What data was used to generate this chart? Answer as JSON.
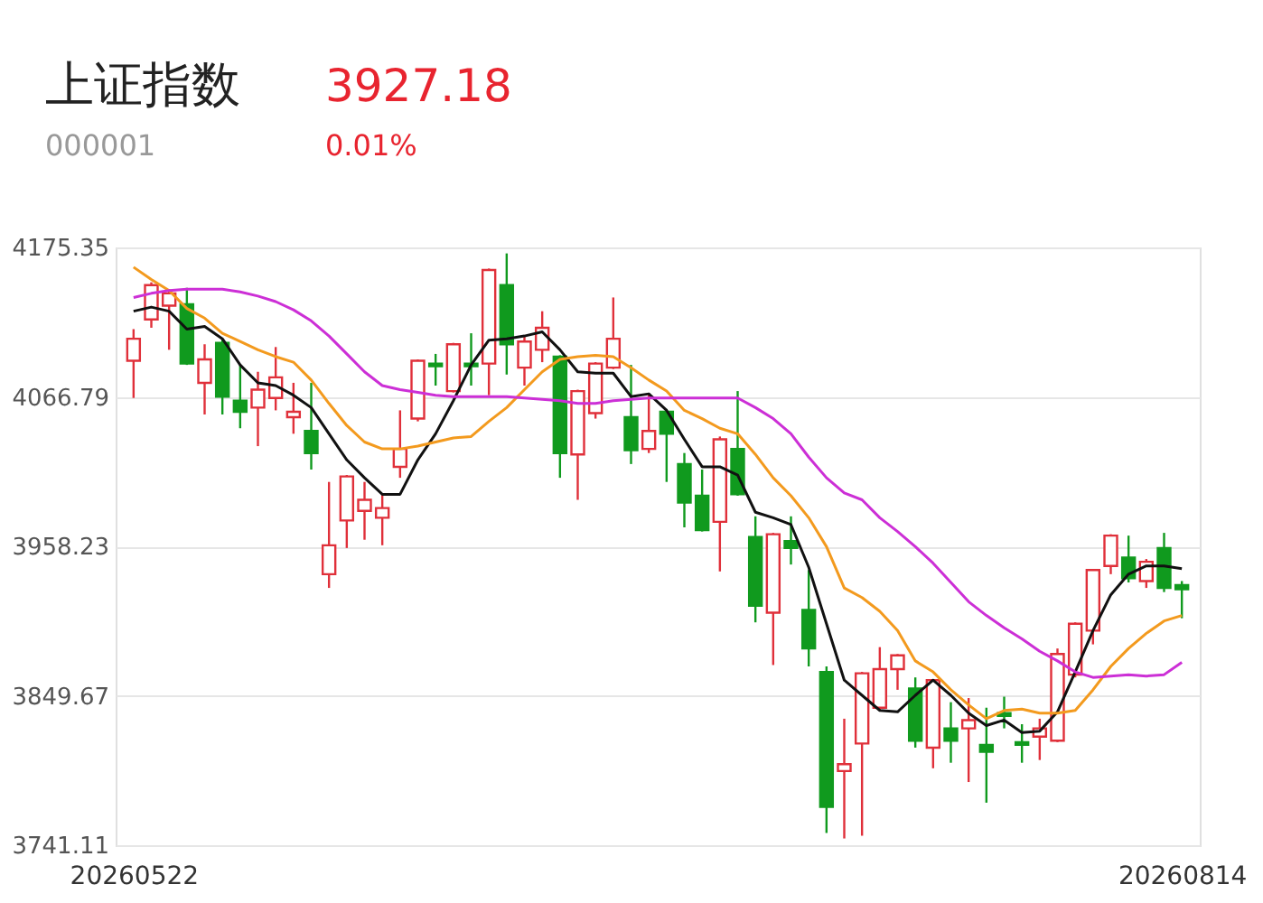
{
  "chart_data": {
    "type": "candlestick",
    "title": "上证指数",
    "subtitle": "000001",
    "annotations": [
      "3927.18",
      "0.01%"
    ],
    "categories": [
      "20260522",
      null,
      null,
      null,
      null,
      null,
      null,
      null,
      null,
      null,
      null,
      null,
      null,
      null,
      null,
      null,
      null,
      null,
      null,
      null,
      null,
      null,
      null,
      null,
      null,
      null,
      null,
      null,
      null,
      null,
      null,
      null,
      null,
      null,
      null,
      null,
      null,
      null,
      null,
      null,
      null,
      null,
      null,
      null,
      null,
      null,
      null,
      null,
      null,
      null,
      null,
      null,
      null,
      null,
      null,
      null,
      null,
      null,
      null,
      "20260814"
    ],
    "ohlc": [
      [
        4093,
        4116,
        4066,
        4109
      ],
      [
        4123,
        4150,
        4117,
        4148
      ],
      [
        4133,
        4145,
        4101,
        4142
      ],
      [
        4134,
        4146,
        4090,
        4091
      ],
      [
        4077,
        4105,
        4054,
        4094
      ],
      [
        4106,
        4109,
        4054,
        4067
      ],
      [
        4064,
        4090,
        4044,
        4056
      ],
      [
        4059,
        4085,
        4031,
        4072
      ],
      [
        4066,
        4103,
        4057,
        4081
      ],
      [
        4052,
        4077,
        4040,
        4056
      ],
      [
        4042,
        4077,
        4014,
        4026
      ],
      [
        3938,
        4005,
        3928,
        3959
      ],
      [
        3977,
        4010,
        3957,
        4009
      ],
      [
        3984,
        4005,
        3963,
        3992
      ],
      [
        3979,
        3996,
        3959,
        3986
      ],
      [
        4016,
        4057,
        4008,
        4029
      ],
      [
        4051,
        4094,
        4049,
        4093
      ],
      [
        4091,
        4098,
        4075,
        4089
      ],
      [
        4071,
        4106,
        4070,
        4105
      ],
      [
        4091,
        4113,
        4075,
        4089
      ],
      [
        4091,
        4160,
        4068,
        4159
      ],
      [
        4148,
        4171,
        4083,
        4105
      ],
      [
        4088,
        4111,
        4075,
        4107
      ],
      [
        4101,
        4129,
        4092,
        4117
      ],
      [
        4096,
        4097,
        4008,
        4026
      ],
      [
        4025,
        4072,
        3992,
        4071
      ],
      [
        4055,
        4092,
        4051,
        4091
      ],
      [
        4088,
        4139,
        4087,
        4109
      ],
      [
        4052,
        4090,
        4018,
        4028
      ],
      [
        4029,
        4069,
        4026,
        4042
      ],
      [
        4056,
        4058,
        4005,
        4040
      ],
      [
        4018,
        4026,
        3972,
        3990
      ],
      [
        3995,
        4014,
        3969,
        3970
      ],
      [
        3976,
        4038,
        3940,
        4036
      ],
      [
        4029,
        4071,
        3995,
        3996
      ],
      [
        3965,
        3980,
        3903,
        3915
      ],
      [
        3910,
        3968,
        3872,
        3967
      ],
      [
        3962,
        3980,
        3945,
        3957
      ],
      [
        3912,
        3941,
        3871,
        3884
      ],
      [
        3867,
        3871,
        3750,
        3769
      ],
      [
        3795,
        3833,
        3746,
        3800
      ],
      [
        3815,
        3867,
        3748,
        3866
      ],
      [
        3841,
        3885,
        3839,
        3869
      ],
      [
        3869,
        3880,
        3854,
        3879
      ],
      [
        3855,
        3863,
        3812,
        3817
      ],
      [
        3812,
        3861,
        3797,
        3861
      ],
      [
        3826,
        3845,
        3801,
        3817
      ],
      [
        3826,
        3848,
        3787,
        3832
      ],
      [
        3814,
        3841,
        3772,
        3809
      ],
      [
        3837,
        3849,
        3826,
        3835
      ],
      [
        3816,
        3829,
        3801,
        3814
      ],
      [
        3820,
        3833,
        3803,
        3826
      ],
      [
        3817,
        3884,
        3816,
        3880
      ],
      [
        3865,
        3903,
        3863,
        3902
      ],
      [
        3897,
        3941,
        3887,
        3941
      ],
      [
        3944,
        3967,
        3938,
        3966
      ],
      [
        3950,
        3966,
        3932,
        3935
      ],
      [
        3933,
        3949,
        3928,
        3947
      ],
      [
        3957,
        3968,
        3925,
        3928
      ],
      [
        3930,
        3933,
        3906,
        3927
      ]
    ],
    "colors": [
      "#e0303a",
      "#e0303a",
      "#e0303a",
      "#109a1e",
      "#e0303a",
      "#109a1e",
      "#109a1e",
      "#e0303a",
      "#e0303a",
      "#e0303a",
      "#109a1e",
      "#e0303a",
      "#e0303a",
      "#e0303a",
      "#e0303a",
      "#e0303a",
      "#e0303a",
      "#109a1e",
      "#e0303a",
      "#109a1e",
      "#e0303a",
      "#109a1e",
      "#e0303a",
      "#e0303a",
      "#109a1e",
      "#e0303a",
      "#e0303a",
      "#e0303a",
      "#109a1e",
      "#e0303a",
      "#109a1e",
      "#109a1e",
      "#109a1e",
      "#e0303a",
      "#109a1e",
      "#109a1e",
      "#e0303a",
      "#109a1e",
      "#109a1e",
      "#109a1e",
      "#e0303a",
      "#e0303a",
      "#e0303a",
      "#e0303a",
      "#109a1e",
      "#e0303a",
      "#109a1e",
      "#e0303a",
      "#109a1e",
      "#109a1e",
      "#109a1e",
      "#e0303a",
      "#e0303a",
      "#e0303a",
      "#e0303a",
      "#e0303a",
      "#109a1e",
      "#e0303a",
      "#109a1e",
      "#109a1e"
    ],
    "series": [
      {
        "type": "line",
        "color": "#111111",
        "values": [
          4129,
          4132,
          4129,
          4116,
          4118,
          4109,
          4090,
          4077,
          4075,
          4068,
          4059,
          4040,
          4021,
          4008,
          3996,
          3996,
          4021,
          4040,
          4064,
          4090,
          4108,
          4109,
          4111,
          4114,
          4101,
          4085,
          4084,
          4084,
          4067,
          4069,
          4057,
          4036,
          4016,
          4016,
          4010,
          3983,
          3979,
          3974,
          3943,
          3902,
          3861,
          3850,
          3839,
          3838,
          3850,
          3861,
          3850,
          3837,
          3828,
          3832,
          3823,
          3824,
          3838,
          3867,
          3897,
          3923,
          3938,
          3944,
          3944,
          3942
        ]
      },
      {
        "type": "line",
        "color": "#f39a1e",
        "values": [
          4161,
          4152,
          4144,
          4131,
          4124,
          4113,
          4107,
          4101,
          4096,
          4092,
          4079,
          4062,
          4046,
          4034,
          4029,
          4029,
          4031,
          4034,
          4037,
          4038,
          4049,
          4059,
          4072,
          4085,
          4094,
          4096,
          4097,
          4096,
          4088,
          4079,
          4071,
          4057,
          4051,
          4044,
          4040,
          4025,
          4008,
          3995,
          3979,
          3958,
          3928,
          3921,
          3911,
          3897,
          3875,
          3867,
          3854,
          3843,
          3833,
          3839,
          3840,
          3837,
          3837,
          3839,
          3854,
          3871,
          3884,
          3895,
          3904,
          3908
        ]
      },
      {
        "type": "line",
        "color": "#cc2fd6",
        "values": [
          4139,
          4142,
          4144,
          4145,
          4145,
          4145,
          4143,
          4140,
          4136,
          4130,
          4122,
          4111,
          4098,
          4085,
          4075,
          4072,
          4070,
          4068,
          4067,
          4067,
          4067,
          4067,
          4066,
          4065,
          4064,
          4062,
          4062,
          4064,
          4065,
          4066,
          4066,
          4066,
          4066,
          4066,
          4066,
          4059,
          4051,
          4040,
          4023,
          4008,
          3997,
          3992,
          3979,
          3969,
          3958,
          3946,
          3932,
          3918,
          3908,
          3899,
          3891,
          3882,
          3875,
          3867,
          3863,
          3864,
          3865,
          3864,
          3865,
          3874
        ]
      }
    ],
    "ylim": [
      3741.11,
      4175.35
    ],
    "yticks": [
      4175.35,
      4066.79,
      3958.23,
      3849.67,
      3741.11
    ],
    "grid": "y",
    "legend": false
  }
}
